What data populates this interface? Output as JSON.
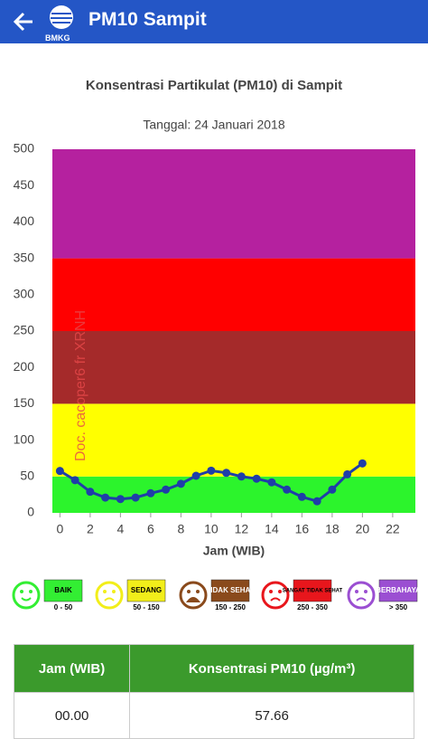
{
  "app_bar": {
    "title": "PM10 Sampit",
    "logo": "BMKG"
  },
  "chart_data": {
    "type": "line",
    "title": "Konsentrasi Partikulat (PM10) di Sampit",
    "subtitle": "Tanggal: 24 Januari 2018",
    "x_label": "Jam (WIB)",
    "watermark": "Doc. cacoper6 fr XRNH",
    "x": [
      0,
      1,
      2,
      3,
      4,
      5,
      6,
      7,
      8,
      9,
      10,
      11,
      12,
      13,
      14,
      15,
      16,
      17,
      18,
      19,
      20
    ],
    "values": [
      57.66,
      45,
      29,
      21,
      19,
      21,
      27,
      32,
      40,
      51,
      58,
      55,
      50,
      47,
      42,
      32,
      22,
      16,
      32,
      53,
      68
    ],
    "color": "#1f3ea8",
    "xlim": [
      -0.5,
      23.5
    ],
    "xticks": [
      0,
      2,
      4,
      6,
      8,
      10,
      12,
      14,
      16,
      18,
      20,
      22
    ],
    "ylim": [
      0,
      500
    ],
    "yticks": [
      0,
      50,
      100,
      150,
      200,
      250,
      300,
      350,
      400,
      450,
      500
    ],
    "bands": [
      {
        "from": 0,
        "to": 50,
        "color": "#2cf42c"
      },
      {
        "from": 50,
        "to": 150,
        "color": "#ffff00"
      },
      {
        "from": 150,
        "to": 250,
        "color": "#a52a2a"
      },
      {
        "from": 250,
        "to": 350,
        "color": "#ff0000"
      },
      {
        "from": 350,
        "to": 500,
        "color": "#b5219f"
      }
    ]
  },
  "legend": [
    {
      "label": "BAIK",
      "range": "0 - 50",
      "color": "#33ee33"
    },
    {
      "label": "SEDANG",
      "range": "50 - 150",
      "color": "#f2ee1a"
    },
    {
      "label": "TIDAK SEHAT",
      "range": "150 - 250",
      "color": "#8a4a1c"
    },
    {
      "label": "SANGAT TIDAK SEHAT",
      "range": "250 - 350",
      "color": "#e8161c"
    },
    {
      "label": "BERBAHAYA",
      "range": "> 350",
      "color": "#9b4fd2"
    }
  ],
  "table": {
    "header": [
      "Jam (WIB)",
      "Konsentrasi PM10 (µg/m³)"
    ],
    "rows": [
      [
        "00.00",
        "57.66"
      ]
    ]
  }
}
